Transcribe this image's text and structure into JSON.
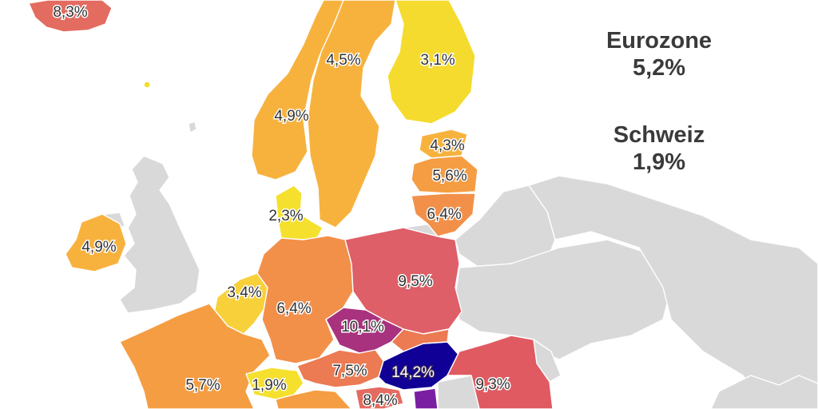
{
  "colors": {
    "nodata": "#d9d9d9",
    "scale_low": "#f5db2e",
    "scale_high": "#110096"
  },
  "summary": {
    "eurozone_label": "Eurozone",
    "eurozone_value": "5,2%",
    "switzerland_label": "Schweiz",
    "switzerland_value": "1,9%"
  },
  "countries": [
    {
      "key": "iceland",
      "value": "8,3%",
      "color": "#e46b60"
    },
    {
      "key": "norway",
      "value": "4,9%",
      "color": "#f7b23e"
    },
    {
      "key": "sweden",
      "value": "4,5%",
      "color": "#f7b23e"
    },
    {
      "key": "finland",
      "value": "3,1%",
      "color": "#f5db2e"
    },
    {
      "key": "estonia",
      "value": "4,3%",
      "color": "#f7b23e"
    },
    {
      "key": "latvia",
      "value": "5,6%",
      "color": "#f59d42"
    },
    {
      "key": "lithuania",
      "value": "6,4%",
      "color": "#f2904a"
    },
    {
      "key": "denmark",
      "value": "2,3%",
      "color": "#f5e02e"
    },
    {
      "key": "ireland",
      "value": "4,9%",
      "color": "#f7b23e"
    },
    {
      "key": "benelux",
      "value": "3,4%",
      "color": "#f7d03a"
    },
    {
      "key": "germany",
      "value": "6,4%",
      "color": "#f2904a"
    },
    {
      "key": "poland",
      "value": "9,5%",
      "color": "#de5f67"
    },
    {
      "key": "czechia",
      "value": "10,1%",
      "color": "#a8327e"
    },
    {
      "key": "france",
      "value": "5,7%",
      "color": "#f59d42"
    },
    {
      "key": "switzerland",
      "value": "1,9%",
      "color": "#f5e02e"
    },
    {
      "key": "austria",
      "value": "7,5%",
      "color": "#ec7a52"
    },
    {
      "key": "hungary",
      "value": "14,2%",
      "color": "#110096"
    },
    {
      "key": "romania",
      "value": "9,3%",
      "color": "#e05a62"
    },
    {
      "key": "slovenia",
      "value": "8,4%",
      "color": "#e46b60"
    }
  ]
}
